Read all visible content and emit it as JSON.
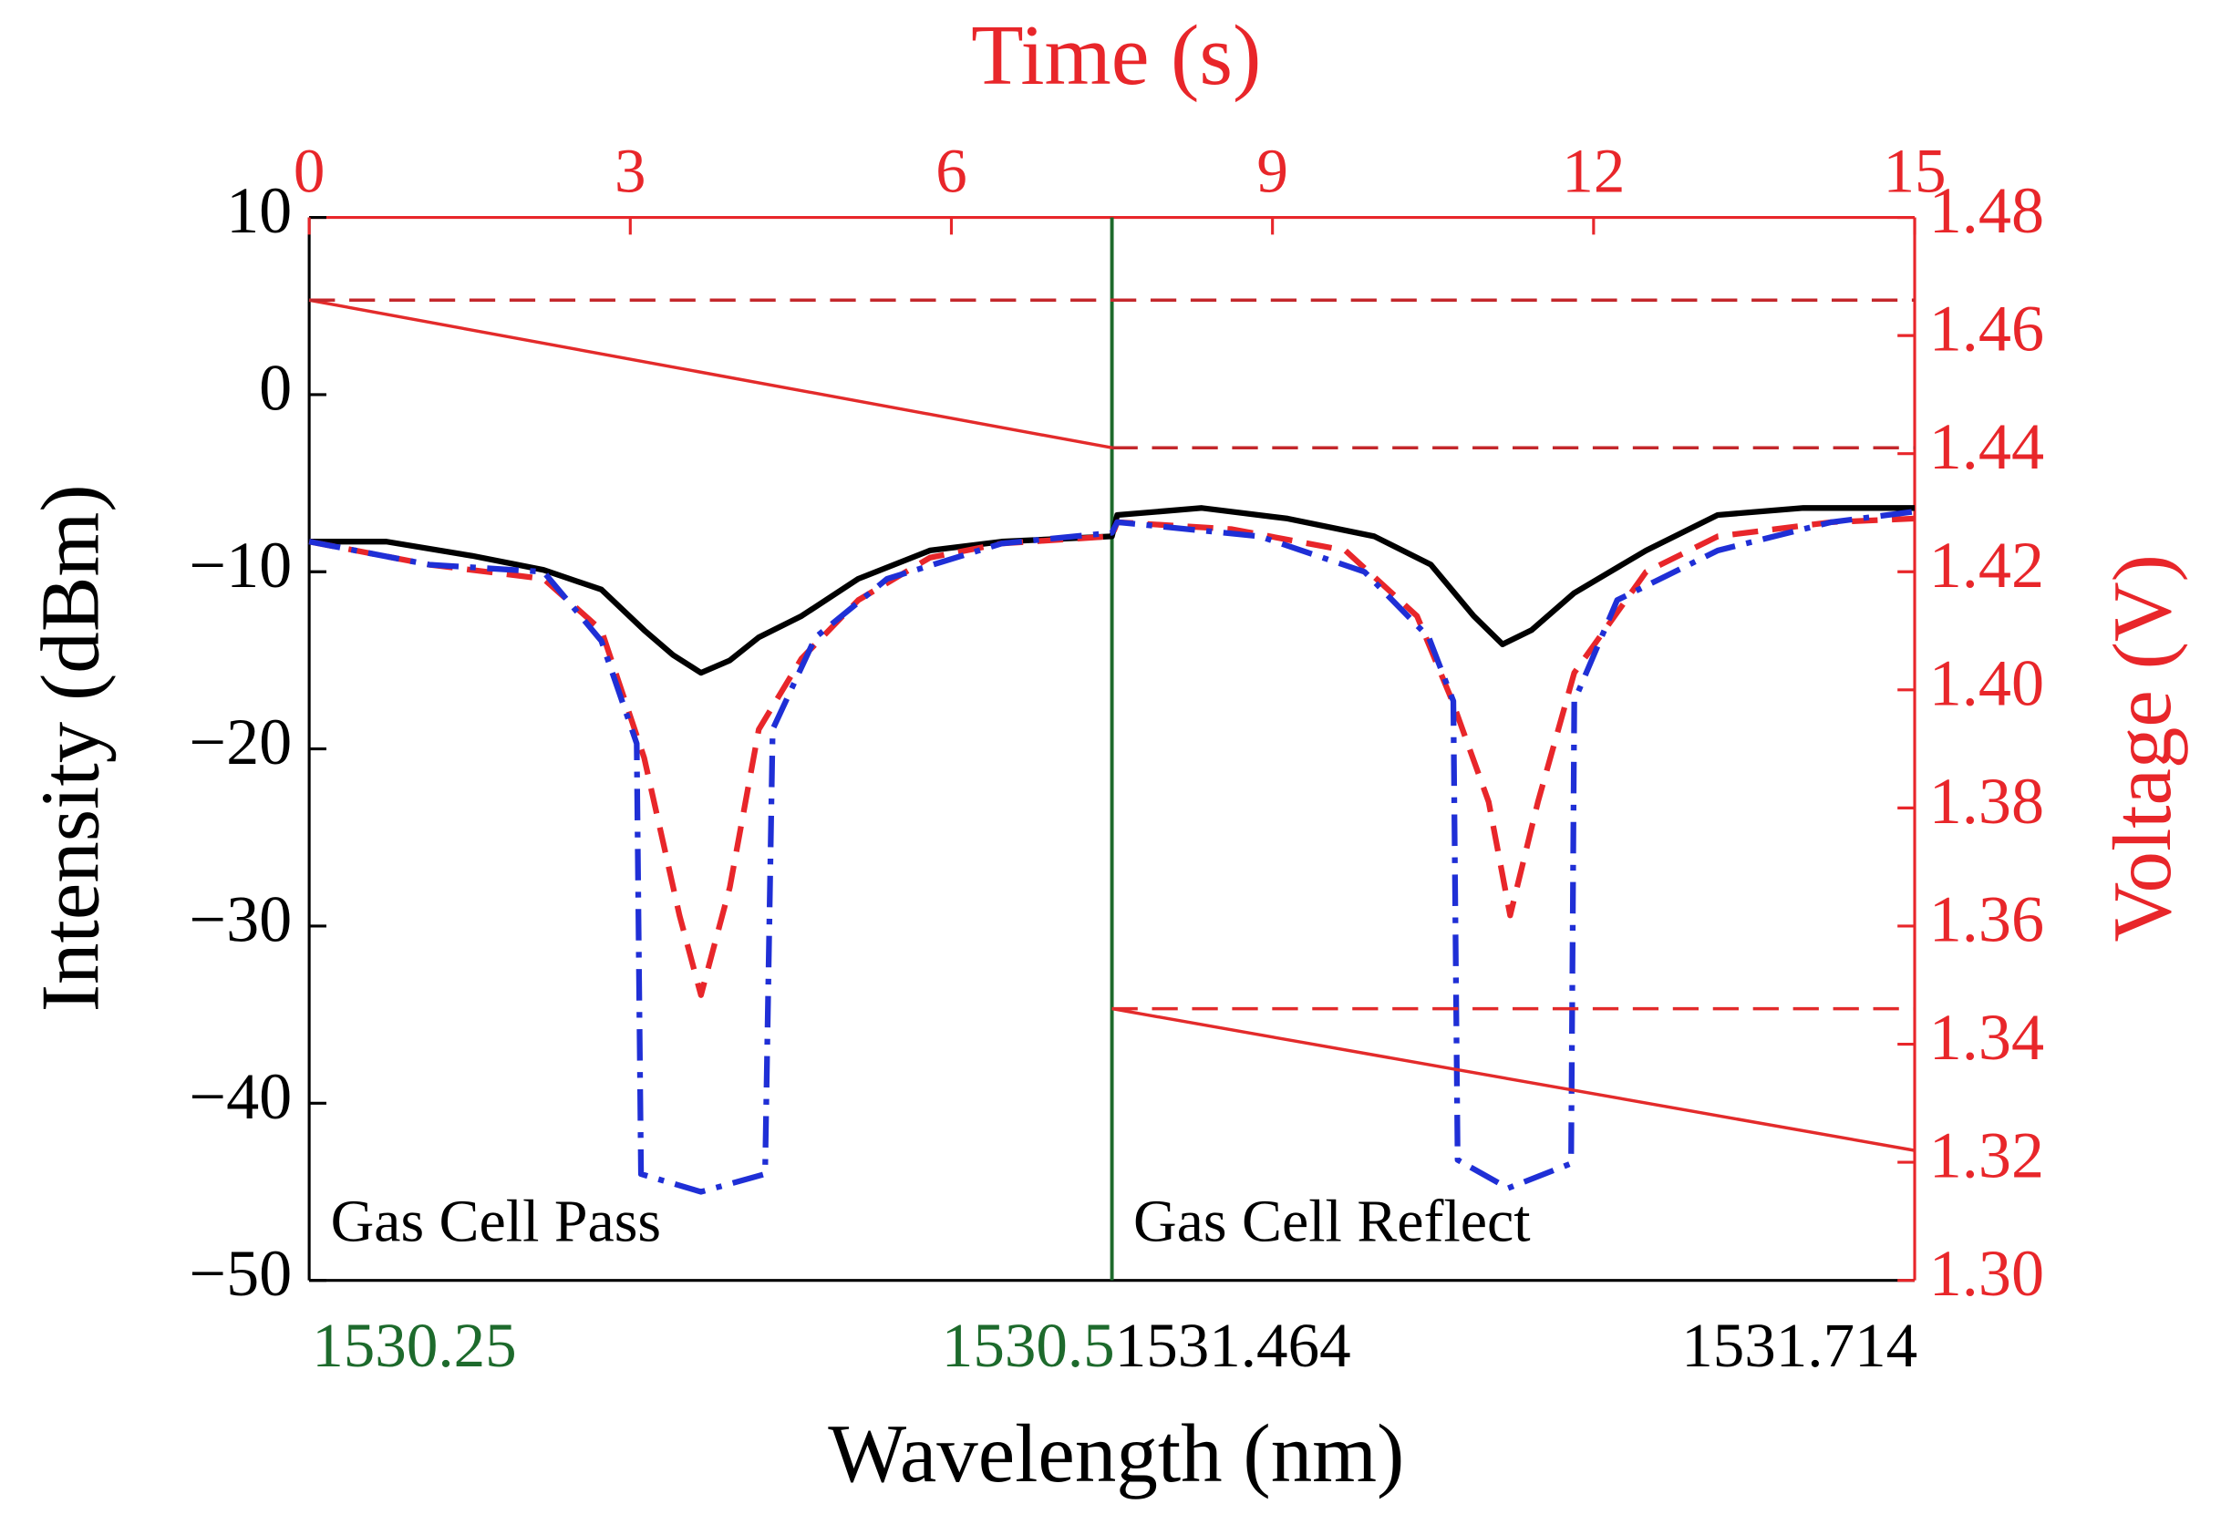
{
  "chart_data": {
    "type": "line",
    "xlabel": "Time (s)",
    "ylabel": "Intensity (dBm)",
    "y2label": "Voltage (V)",
    "x2label": "Wavelength (nm)",
    "xlim": [
      0,
      15
    ],
    "xticks": [
      0,
      3,
      6,
      9,
      12,
      15
    ],
    "ylim": [
      -50,
      10
    ],
    "yticks": [
      {
        "value": -50,
        "label": "−50"
      },
      {
        "value": -40,
        "label": "−40"
      },
      {
        "value": -30,
        "label": "−30"
      },
      {
        "value": -20,
        "label": "−20"
      },
      {
        "value": -10,
        "label": "−10"
      },
      0,
      10
    ],
    "y2lim": [
      1.3,
      1.48
    ],
    "y2ticks": [
      {
        "value": 1.3,
        "label": "1.30"
      },
      1.32,
      1.34,
      1.36,
      1.38,
      {
        "value": 1.4,
        "label": "1.40"
      },
      1.42,
      1.44,
      1.46,
      1.48
    ],
    "divider": {
      "x": 7.5,
      "color": "#1d6a2c"
    },
    "wavelength_segments": [
      {
        "ticks": [
          1530.25,
          1530.5
        ],
        "color": "#1d6a2c",
        "xrange": [
          0,
          7.5
        ]
      },
      {
        "ticks": [
          1531.464,
          1531.714
        ],
        "color": "#000000",
        "xrange": [
          7.5,
          15
        ]
      }
    ],
    "annotations": [
      {
        "text": "Gas Cell Pass",
        "x": 0.2,
        "y": -47
      },
      {
        "text": "Gas Cell Reflect",
        "x": 7.7,
        "y": -47
      }
    ],
    "series": [
      {
        "color": "#000000",
        "dash": "solid",
        "x": [
          0,
          0.72,
          1.52,
          2.19,
          2.73,
          3.13,
          3.4,
          3.66,
          3.93,
          4.2,
          4.6,
          5.13,
          5.8,
          6.47,
          7.5,
          7.55,
          8.34,
          9.14,
          9.95,
          10.48,
          10.88,
          11.15,
          11.42,
          11.82,
          12.49,
          13.16,
          13.96,
          15
        ],
        "values": [
          -8.3,
          -8.3,
          -9.1,
          -9.9,
          -11,
          -13.3,
          -14.7,
          -15.7,
          -15,
          -13.7,
          -12.5,
          -10.4,
          -8.8,
          -8.3,
          -8,
          -6.8,
          -6.4,
          -7,
          -8,
          -9.6,
          -12.5,
          -14.1,
          -13.3,
          -11.2,
          -8.8,
          -6.8,
          -6.4,
          -6.4
        ]
      },
      {
        "color": "#e8262a",
        "dash": "dashed",
        "x": [
          0,
          1.12,
          2.19,
          2.73,
          3.13,
          3.46,
          3.66,
          3.93,
          4.2,
          4.6,
          5.13,
          5.8,
          6.47,
          7.5,
          7.55,
          8.62,
          9.68,
          10.35,
          10.68,
          11.02,
          11.22,
          11.48,
          11.82,
          12.49,
          13.16,
          14.22,
          15
        ],
        "values": [
          -8.3,
          -9.6,
          -10.4,
          -13.3,
          -20.5,
          -29.4,
          -33.9,
          -27.8,
          -18.9,
          -14.9,
          -11.6,
          -9.2,
          -8.4,
          -8,
          -7.2,
          -7.6,
          -8.8,
          -12.5,
          -17.3,
          -23,
          -29.4,
          -23,
          -15.7,
          -10,
          -8,
          -7.2,
          -7
        ]
      },
      {
        "color": "#1f2fd6",
        "dash": "dashdot",
        "x": [
          0,
          1.12,
          2.19,
          2.73,
          3.06,
          3.1,
          3.66,
          4.26,
          4.33,
          4.73,
          5.4,
          6.47,
          7.5,
          7.55,
          8.88,
          9.86,
          10.46,
          10.69,
          10.73,
          11.2,
          11.79,
          11.82,
          12.22,
          13.16,
          14.22,
          15
        ],
        "values": [
          -8.3,
          -9.6,
          -10,
          -13.9,
          -19.7,
          -44,
          -45,
          -44,
          -18.9,
          -13.7,
          -10.4,
          -8.4,
          -7.8,
          -7.2,
          -8,
          -10,
          -13.7,
          -17.3,
          -43.2,
          -44.8,
          -43.4,
          -17.3,
          -11.6,
          -8.8,
          -7.2,
          -6.6
        ]
      },
      {
        "color": "#e32b2b",
        "dash": "solid",
        "axis": "y2",
        "x": [
          0,
          7.5
        ],
        "values": [
          1.466,
          1.441
        ]
      },
      {
        "color": "#e32b2b",
        "dash": "solid",
        "axis": "y2",
        "x": [
          7.5,
          15
        ],
        "values": [
          1.346,
          1.322
        ]
      },
      {
        "color": "#c4272b",
        "dash": "dashed",
        "axis": "y2",
        "x": [
          0,
          15
        ],
        "values": [
          1.466,
          1.466
        ]
      },
      {
        "color": "#c4272b",
        "dash": "dashed",
        "axis": "y2",
        "x": [
          7.5,
          15
        ],
        "values": [
          1.441,
          1.441
        ]
      },
      {
        "color": "#e32b2b",
        "dash": "dashed",
        "axis": "y2",
        "x": [
          7.5,
          15
        ],
        "values": [
          1.346,
          1.346
        ]
      }
    ]
  }
}
